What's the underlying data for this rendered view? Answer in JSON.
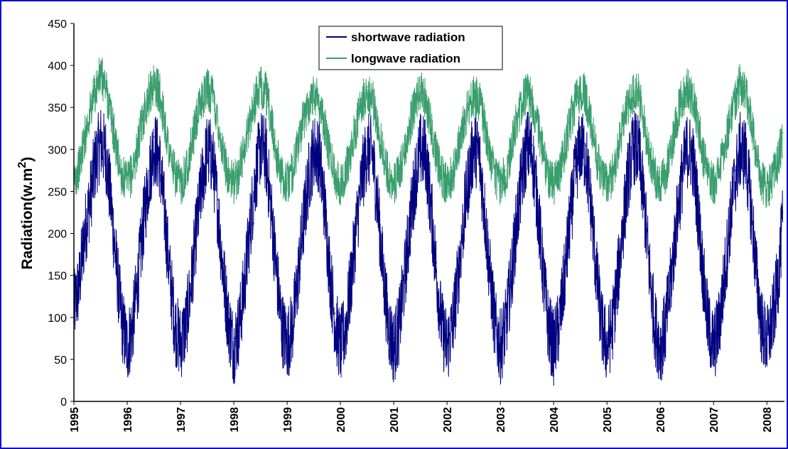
{
  "chart_data": {
    "type": "line",
    "title": "",
    "xlabel": "",
    "ylabel": "Radiation(w.m",
    "ylabel_superscript": "2",
    "ylabel_suffix": ")",
    "ylim": [
      0,
      450
    ],
    "yticks": [
      "0",
      "50",
      "100",
      "150",
      "200",
      "250",
      "300",
      "350",
      "400",
      "450"
    ],
    "xlim": [
      1995,
      2008.33
    ],
    "xticks": [
      "1995",
      "1996",
      "1997",
      "1998",
      "1999",
      "2000",
      "2001",
      "2002",
      "2003",
      "2004",
      "2005",
      "2006",
      "2007",
      "2008"
    ],
    "grid": false,
    "legend": "top-center",
    "series": [
      {
        "name": "shortwave radiation",
        "color": "#000080",
        "x": [
          1995.0,
          1995.1,
          1995.2,
          1995.3,
          1995.4,
          1995.5,
          1995.6,
          1995.7,
          1995.8,
          1995.9,
          1996.0,
          1996.1,
          1996.2,
          1996.3,
          1996.4,
          1996.5,
          1996.6,
          1996.7,
          1996.8,
          1996.9,
          1997.0,
          1997.1,
          1997.2,
          1997.3,
          1997.4,
          1997.5,
          1997.6,
          1997.7,
          1997.8,
          1997.9,
          1998.0,
          1998.1,
          1998.2,
          1998.3,
          1998.4,
          1998.5,
          1998.6,
          1998.7,
          1998.8,
          1998.9,
          1999.0,
          1999.1,
          1999.2,
          1999.3,
          1999.4,
          1999.5,
          1999.6,
          1999.7,
          1999.8,
          1999.9,
          2000.0,
          2000.1,
          2000.2,
          2000.3,
          2000.4,
          2000.5,
          2000.6,
          2000.7,
          2000.8,
          2000.9,
          2001.0,
          2001.1,
          2001.2,
          2001.3,
          2001.4,
          2001.5,
          2001.6,
          2001.7,
          2001.8,
          2001.9,
          2002.0,
          2002.1,
          2002.2,
          2002.3,
          2002.4,
          2002.5,
          2002.6,
          2002.7,
          2002.8,
          2002.9,
          2003.0,
          2003.1,
          2003.2,
          2003.3,
          2003.4,
          2003.5,
          2003.6,
          2003.7,
          2003.8,
          2003.9,
          2004.0,
          2004.1,
          2004.2,
          2004.3,
          2004.4,
          2004.5,
          2004.6,
          2004.7,
          2004.8,
          2004.9,
          2005.0,
          2005.1,
          2005.2,
          2005.3,
          2005.4,
          2005.5,
          2005.6,
          2005.7,
          2005.8,
          2005.9,
          2006.0,
          2006.1,
          2006.2,
          2006.3,
          2006.4,
          2006.5,
          2006.6,
          2006.7,
          2006.8,
          2006.9,
          2007.0,
          2007.1,
          2007.2,
          2007.3,
          2007.4,
          2007.5,
          2007.6,
          2007.7,
          2007.8,
          2007.9,
          2008.0,
          2008.1,
          2008.2,
          2008.3
        ],
        "y": [
          120,
          150,
          210,
          250,
          295,
          320,
          305,
          245,
          170,
          105,
          75,
          100,
          155,
          220,
          275,
          315,
          300,
          235,
          160,
          100,
          80,
          100,
          150,
          215,
          270,
          310,
          300,
          240,
          165,
          105,
          75,
          100,
          150,
          215,
          275,
          315,
          305,
          240,
          165,
          100,
          80,
          100,
          155,
          220,
          275,
          310,
          305,
          245,
          165,
          105,
          75,
          100,
          155,
          220,
          275,
          310,
          305,
          245,
          165,
          100,
          75,
          100,
          155,
          220,
          275,
          310,
          305,
          240,
          165,
          100,
          75,
          100,
          155,
          220,
          275,
          315,
          305,
          240,
          165,
          100,
          75,
          100,
          155,
          220,
          275,
          315,
          305,
          245,
          165,
          100,
          75,
          100,
          155,
          220,
          280,
          315,
          305,
          245,
          165,
          100,
          75,
          100,
          155,
          220,
          280,
          315,
          305,
          245,
          165,
          100,
          75,
          100,
          155,
          220,
          275,
          310,
          305,
          245,
          165,
          100,
          75,
          100,
          155,
          220,
          275,
          310,
          305,
          245,
          165,
          100,
          80,
          105,
          150,
          225
        ]
      },
      {
        "name": "longwave radiation",
        "color": "#3a9e6e",
        "x": [
          1995.0,
          1995.1,
          1995.2,
          1995.3,
          1995.4,
          1995.5,
          1995.6,
          1995.7,
          1995.8,
          1995.9,
          1996.0,
          1996.1,
          1996.2,
          1996.3,
          1996.4,
          1996.5,
          1996.6,
          1996.7,
          1996.8,
          1996.9,
          1997.0,
          1997.1,
          1997.2,
          1997.3,
          1997.4,
          1997.5,
          1997.6,
          1997.7,
          1997.8,
          1997.9,
          1998.0,
          1998.1,
          1998.2,
          1998.3,
          1998.4,
          1998.5,
          1998.6,
          1998.7,
          1998.8,
          1998.9,
          1999.0,
          1999.1,
          1999.2,
          1999.3,
          1999.4,
          1999.5,
          1999.6,
          1999.7,
          1999.8,
          1999.9,
          2000.0,
          2000.1,
          2000.2,
          2000.3,
          2000.4,
          2000.5,
          2000.6,
          2000.7,
          2000.8,
          2000.9,
          2001.0,
          2001.1,
          2001.2,
          2001.3,
          2001.4,
          2001.5,
          2001.6,
          2001.7,
          2001.8,
          2001.9,
          2002.0,
          2002.1,
          2002.2,
          2002.3,
          2002.4,
          2002.5,
          2002.6,
          2002.7,
          2002.8,
          2002.9,
          2003.0,
          2003.1,
          2003.2,
          2003.3,
          2003.4,
          2003.5,
          2003.6,
          2003.7,
          2003.8,
          2003.9,
          2004.0,
          2004.1,
          2004.2,
          2004.3,
          2004.4,
          2004.5,
          2004.6,
          2004.7,
          2004.8,
          2004.9,
          2005.0,
          2005.1,
          2005.2,
          2005.3,
          2005.4,
          2005.5,
          2005.6,
          2005.7,
          2005.8,
          2005.9,
          2006.0,
          2006.1,
          2006.2,
          2006.3,
          2006.4,
          2006.5,
          2006.6,
          2006.7,
          2006.8,
          2006.9,
          2007.0,
          2007.1,
          2007.2,
          2007.3,
          2007.4,
          2007.5,
          2007.6,
          2007.7,
          2007.8,
          2007.9,
          2008.0,
          2008.1,
          2008.2,
          2008.3
        ],
        "y": [
          270,
          285,
          320,
          350,
          375,
          395,
          380,
          345,
          305,
          275,
          265,
          280,
          310,
          345,
          370,
          385,
          375,
          340,
          300,
          275,
          265,
          280,
          310,
          340,
          365,
          380,
          370,
          340,
          300,
          275,
          265,
          280,
          310,
          340,
          365,
          380,
          375,
          340,
          300,
          275,
          265,
          280,
          310,
          340,
          360,
          375,
          365,
          335,
          300,
          275,
          265,
          280,
          305,
          335,
          360,
          375,
          365,
          335,
          300,
          275,
          265,
          275,
          305,
          335,
          360,
          375,
          365,
          335,
          300,
          275,
          265,
          275,
          305,
          335,
          355,
          370,
          365,
          335,
          300,
          275,
          265,
          275,
          305,
          340,
          360,
          375,
          365,
          335,
          300,
          275,
          265,
          275,
          305,
          335,
          360,
          375,
          370,
          335,
          300,
          275,
          265,
          275,
          305,
          335,
          360,
          375,
          370,
          335,
          300,
          275,
          265,
          275,
          305,
          340,
          365,
          380,
          370,
          340,
          300,
          275,
          265,
          280,
          305,
          340,
          365,
          385,
          375,
          340,
          300,
          270,
          260,
          270,
          290,
          320
        ]
      }
    ]
  }
}
